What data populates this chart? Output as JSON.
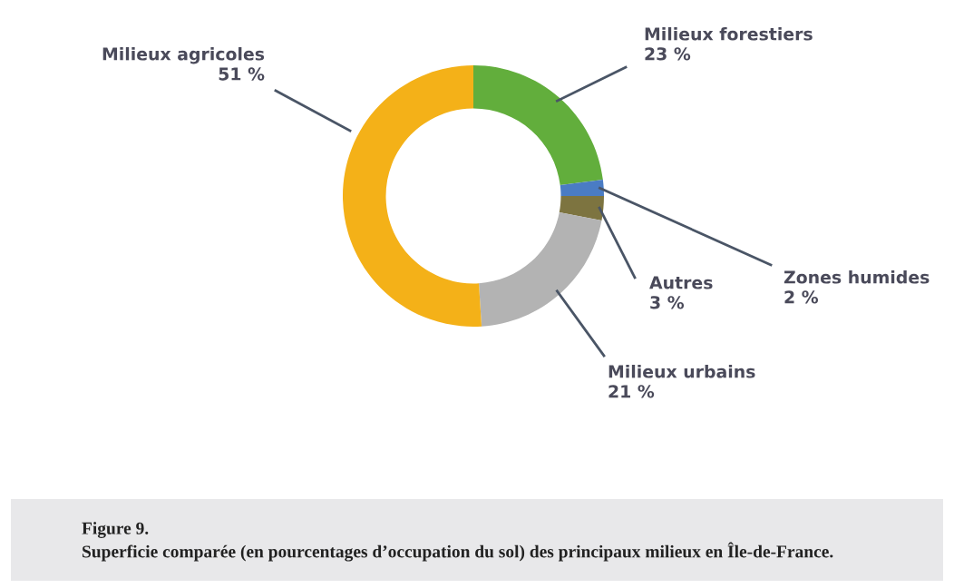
{
  "chart_data": {
    "type": "donut",
    "categories": [
      "Milieux forestiers",
      "Zones humides",
      "Autres",
      "Milieux urbains",
      "Milieux agricoles"
    ],
    "values": [
      23,
      2,
      3,
      21,
      51
    ],
    "value_labels": [
      "23 %",
      "2 %",
      "3 %",
      "21 %",
      "51 %"
    ],
    "colors": [
      "#62ae3c",
      "#4a7cc4",
      "#7d7440",
      "#b3b3b3",
      "#f4b118"
    ],
    "annotations": [
      "Figure 9.",
      "Superficie comparée (en pourcentages d’occupation du sol) des principaux milieux en Île-de-France."
    ]
  }
}
